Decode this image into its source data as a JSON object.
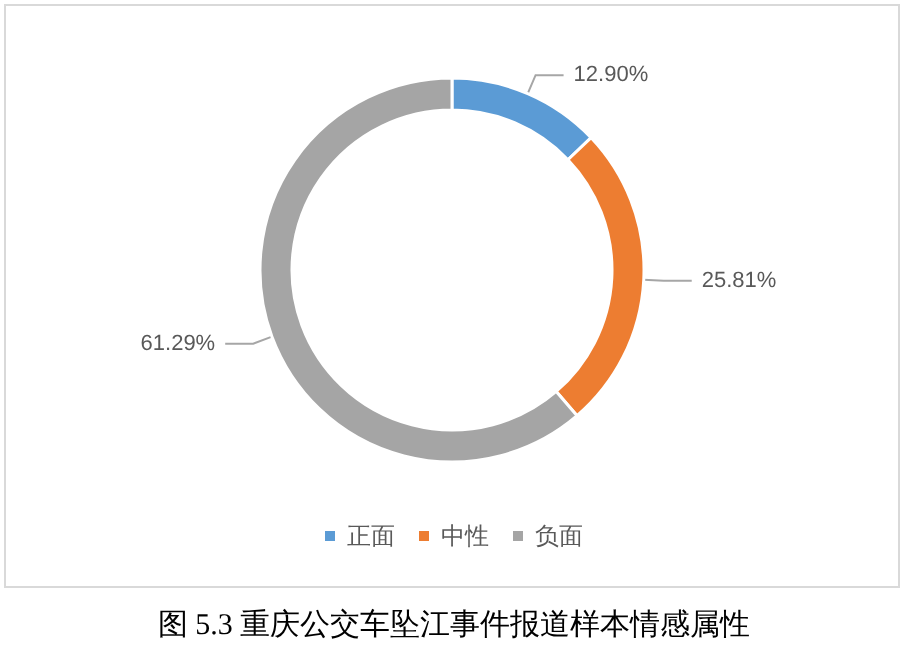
{
  "chart_data": {
    "type": "donut",
    "title": "图 5.3  重庆公交车坠江事件报道样本情感属性",
    "categories": [
      "正面",
      "中性",
      "负面"
    ],
    "values": [
      12.9,
      25.81,
      61.29
    ],
    "colors": [
      "#5b9bd5",
      "#ed7d31",
      "#a5a5a5"
    ],
    "value_labels": [
      "12.90%",
      "25.81%",
      "61.29%"
    ],
    "legend": "bottom"
  }
}
